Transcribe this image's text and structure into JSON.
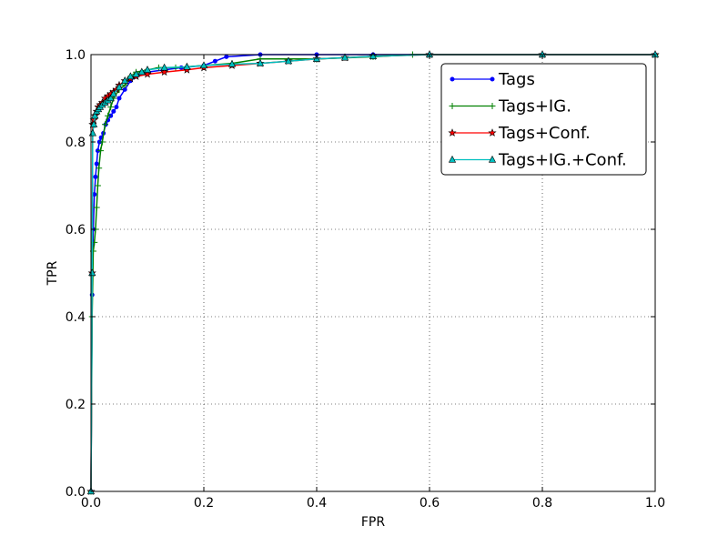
{
  "chart_data": {
    "type": "line",
    "title": "",
    "xlabel": "FPR",
    "ylabel": "TPR",
    "xlim": [
      0.0,
      1.0
    ],
    "ylim": [
      0.0,
      1.0
    ],
    "xticks": [
      "0.0",
      "0.2",
      "0.4",
      "0.6",
      "0.8",
      "1.0"
    ],
    "yticks": [
      "0.0",
      "0.2",
      "0.4",
      "0.6",
      "0.8",
      "1.0"
    ],
    "grid": true,
    "legend_position": "top-right",
    "series": [
      {
        "name": "Tags",
        "color": "#0000ff",
        "marker": "dot",
        "x": [
          0.0,
          0.002,
          0.004,
          0.006,
          0.008,
          0.01,
          0.012,
          0.015,
          0.018,
          0.022,
          0.026,
          0.03,
          0.035,
          0.04,
          0.045,
          0.05,
          0.06,
          0.07,
          0.08,
          0.1,
          0.13,
          0.16,
          0.2,
          0.22,
          0.24,
          0.3,
          0.4,
          0.5,
          0.6,
          0.8,
          1.0
        ],
        "y": [
          0.0,
          0.45,
          0.6,
          0.68,
          0.72,
          0.75,
          0.78,
          0.8,
          0.81,
          0.82,
          0.84,
          0.85,
          0.86,
          0.87,
          0.88,
          0.9,
          0.92,
          0.94,
          0.95,
          0.96,
          0.965,
          0.97,
          0.975,
          0.985,
          0.995,
          1.0,
          1.0,
          1.0,
          1.0,
          1.0,
          1.0
        ]
      },
      {
        "name": "Tags+IG.",
        "color": "#008000",
        "marker": "plus",
        "x": [
          0.0,
          0.002,
          0.004,
          0.006,
          0.008,
          0.01,
          0.012,
          0.014,
          0.017,
          0.02,
          0.025,
          0.03,
          0.035,
          0.04,
          0.05,
          0.06,
          0.07,
          0.08,
          0.1,
          0.12,
          0.15,
          0.2,
          0.25,
          0.3,
          0.4,
          0.5,
          0.57,
          0.6,
          0.8,
          1.0
        ],
        "y": [
          0.0,
          0.4,
          0.55,
          0.57,
          0.6,
          0.65,
          0.7,
          0.74,
          0.78,
          0.8,
          0.84,
          0.86,
          0.88,
          0.9,
          0.92,
          0.93,
          0.95,
          0.96,
          0.965,
          0.97,
          0.97,
          0.975,
          0.98,
          0.99,
          0.99,
          0.995,
          1.0,
          1.0,
          1.0,
          1.0
        ]
      },
      {
        "name": "Tags+Conf.",
        "color": "#ff0000",
        "marker": "star",
        "x": [
          0.0,
          0.002,
          0.003,
          0.005,
          0.007,
          0.01,
          0.013,
          0.016,
          0.02,
          0.025,
          0.03,
          0.035,
          0.04,
          0.045,
          0.05,
          0.06,
          0.07,
          0.08,
          0.1,
          0.13,
          0.17,
          0.2,
          0.25,
          0.3,
          0.35,
          0.4,
          0.45,
          0.5,
          0.6,
          0.8,
          1.0
        ],
        "y": [
          0.0,
          0.5,
          0.84,
          0.85,
          0.86,
          0.87,
          0.88,
          0.885,
          0.89,
          0.9,
          0.905,
          0.91,
          0.915,
          0.92,
          0.93,
          0.94,
          0.945,
          0.95,
          0.955,
          0.96,
          0.965,
          0.97,
          0.975,
          0.98,
          0.985,
          0.99,
          0.993,
          0.996,
          1.0,
          1.0,
          1.0
        ]
      },
      {
        "name": "Tags+IG.+Conf.",
        "color": "#00bfbf",
        "marker": "triangle",
        "x": [
          0.0,
          0.002,
          0.003,
          0.005,
          0.007,
          0.01,
          0.013,
          0.016,
          0.02,
          0.025,
          0.03,
          0.035,
          0.04,
          0.05,
          0.06,
          0.07,
          0.08,
          0.09,
          0.1,
          0.13,
          0.17,
          0.2,
          0.25,
          0.3,
          0.35,
          0.4,
          0.45,
          0.5,
          0.6,
          0.8,
          1.0
        ],
        "y": [
          0.0,
          0.5,
          0.82,
          0.84,
          0.86,
          0.87,
          0.875,
          0.88,
          0.885,
          0.89,
          0.895,
          0.9,
          0.91,
          0.925,
          0.94,
          0.95,
          0.955,
          0.96,
          0.965,
          0.97,
          0.972,
          0.975,
          0.978,
          0.98,
          0.985,
          0.99,
          0.993,
          0.996,
          1.0,
          1.0,
          1.0
        ]
      }
    ]
  }
}
